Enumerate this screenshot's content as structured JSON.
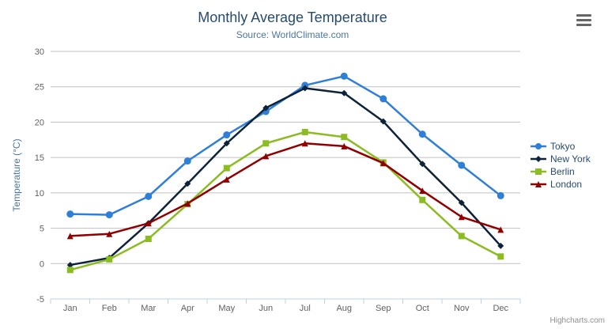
{
  "chart": {
    "title": "Monthly Average Temperature",
    "subtitle": "Source: WorldClimate.com",
    "credits": "Highcharts.com",
    "menu_icon": "hamburger-icon"
  },
  "chart_data": {
    "type": "line",
    "title": "Monthly Average Temperature",
    "subtitle": "Source: WorldClimate.com",
    "categories": [
      "Jan",
      "Feb",
      "Mar",
      "Apr",
      "May",
      "Jun",
      "Jul",
      "Aug",
      "Sep",
      "Oct",
      "Nov",
      "Dec"
    ],
    "series": [
      {
        "name": "Tokyo",
        "color": "#2f7ed8",
        "marker": "circle",
        "values": [
          7.0,
          6.9,
          9.5,
          14.5,
          18.2,
          21.5,
          25.2,
          26.5,
          23.3,
          18.3,
          13.9,
          9.6
        ]
      },
      {
        "name": "New York",
        "color": "#0d233a",
        "marker": "diamond",
        "values": [
          -0.2,
          0.8,
          5.7,
          11.3,
          17.0,
          22.0,
          24.8,
          24.1,
          20.1,
          14.1,
          8.6,
          2.5
        ]
      },
      {
        "name": "Berlin",
        "color": "#8bbc21",
        "marker": "square",
        "values": [
          -0.9,
          0.6,
          3.5,
          8.4,
          13.5,
          17.0,
          18.6,
          17.9,
          14.3,
          9.0,
          3.9,
          1.0
        ]
      },
      {
        "name": "London",
        "color": "#910000",
        "marker": "triangle",
        "values": [
          3.9,
          4.2,
          5.7,
          8.5,
          11.9,
          15.2,
          17.0,
          16.6,
          14.2,
          10.3,
          6.6,
          4.8
        ]
      }
    ],
    "xlabel": "",
    "ylabel": "Temperature (°C)",
    "ylim": [
      -5,
      30
    ],
    "yticks": [
      -5,
      0,
      5,
      10,
      15,
      20,
      25,
      30
    ],
    "grid": true,
    "legend_position": "right"
  },
  "colors": {
    "title": "#274b6d",
    "subtitle": "#4d759e",
    "axis_label": "#606060",
    "axis_title": "#4d759e",
    "grid_line": "#c0c0c0",
    "axis_line": "#c0d0e0",
    "legend_text": "#274b6d",
    "credits_text": "#909090",
    "menu_icon": "#666666"
  }
}
